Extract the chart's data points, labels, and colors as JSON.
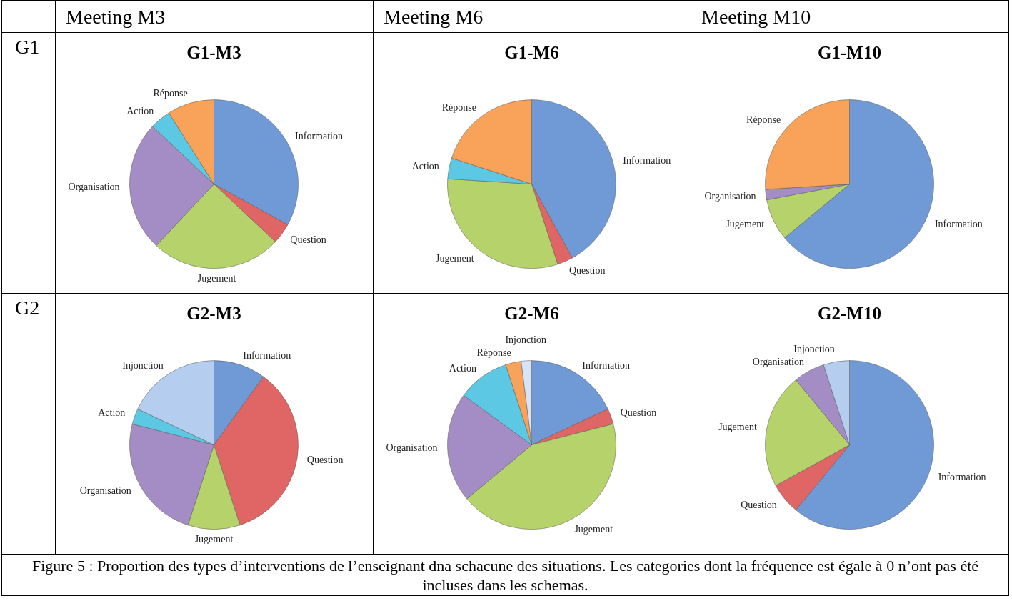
{
  "chart_data": [
    {
      "type": "other",
      "annotations": [
        "Meeting M3",
        "Meeting M6",
        "Meeting M10",
        "G1",
        "G2",
        "Figure 5 : Proportion des types d’interventions de l’enseignant dna schacune des situations. Les categories dont la fréquence est égale à 0 n’ont pas été incluses dans les schemas."
      ]
    },
    {
      "type": "pie",
      "title": "G1-M3",
      "categories": [
        "Information",
        "Question",
        "Jugement",
        "Organisation",
        "Action",
        "Réponse"
      ],
      "values": [
        33,
        4,
        25,
        25,
        4,
        9
      ],
      "colors": [
        "#6f9ad6",
        "#e06666",
        "#b5d36a",
        "#a48cc4",
        "#5cc8e4",
        "#f8a25a"
      ],
      "legend": false
    },
    {
      "type": "pie",
      "title": "G1-M6",
      "categories": [
        "Information",
        "Question",
        "Jugement",
        "Action",
        "Réponse"
      ],
      "values": [
        42,
        3,
        31,
        4,
        20
      ],
      "colors": [
        "#6f9ad6",
        "#e06666",
        "#b5d36a",
        "#5cc8e4",
        "#f8a25a"
      ],
      "legend": false
    },
    {
      "type": "pie",
      "title": "G1-M10",
      "categories": [
        "Information",
        "Jugement",
        "Organisation",
        "Réponse"
      ],
      "values": [
        64,
        8,
        2,
        26
      ],
      "colors": [
        "#6f9ad6",
        "#b5d36a",
        "#a48cc4",
        "#f8a25a"
      ],
      "legend": false
    },
    {
      "type": "pie",
      "title": "G2-M3",
      "categories": [
        "Information",
        "Question",
        "Jugement",
        "Organisation",
        "Action",
        "Injonction"
      ],
      "values": [
        10,
        35,
        10,
        24,
        3,
        18
      ],
      "colors": [
        "#6f9ad6",
        "#e06666",
        "#b5d36a",
        "#a48cc4",
        "#5cc8e4",
        "#b5cdef"
      ],
      "legend": false
    },
    {
      "type": "pie",
      "title": "G2-M6",
      "categories": [
        "Information",
        "Question",
        "Jugement",
        "Organisation",
        "Action",
        "Réponse",
        "Injonction"
      ],
      "values": [
        18,
        3,
        43,
        21,
        10,
        3,
        2
      ],
      "colors": [
        "#6f9ad6",
        "#e06666",
        "#b5d36a",
        "#a48cc4",
        "#5cc8e4",
        "#f8a25a",
        "#d6e4f7"
      ],
      "legend": false
    },
    {
      "type": "pie",
      "title": "G2-M10",
      "categories": [
        "Information",
        "Question",
        "Jugement",
        "Organisation",
        "Injonction"
      ],
      "values": [
        61,
        6,
        22,
        6,
        5
      ],
      "colors": [
        "#6f9ad6",
        "#e06666",
        "#b5d36a",
        "#a48cc4",
        "#b5cdef"
      ],
      "legend": false
    }
  ]
}
